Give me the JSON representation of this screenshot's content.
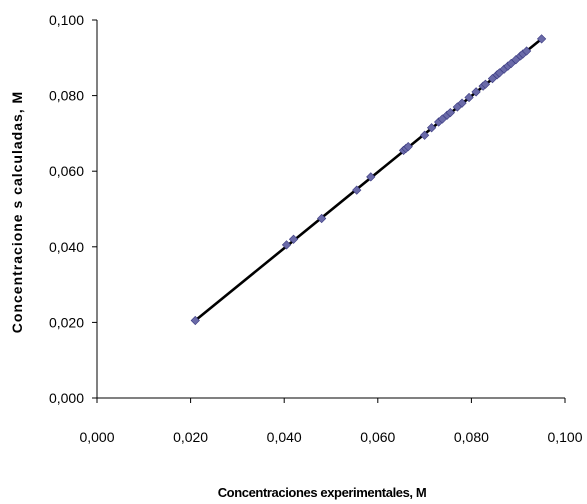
{
  "chart_data": {
    "type": "scatter",
    "title": "",
    "xlabel": "Concentraciones experimentales, M",
    "ylabel": "Concentracione s calculadas, M",
    "xlim": [
      0.0,
      0.1
    ],
    "ylim": [
      0.0,
      0.1
    ],
    "x_ticks": [
      "0,000",
      "0,020",
      "0,040",
      "0,060",
      "0,080",
      "0,100"
    ],
    "y_ticks": [
      "0,000",
      "0,020",
      "0,040",
      "0,060",
      "0,080",
      "0,100"
    ],
    "grid": false,
    "legend": "none",
    "marker": "diamond",
    "marker_color": "#6a6aa8",
    "line_color": "#000000",
    "trendline": {
      "x": [
        0.021,
        0.095
      ],
      "y": [
        0.0205,
        0.095
      ]
    },
    "series": [
      {
        "x": [
          0.021,
          0.0405,
          0.042,
          0.048,
          0.0555,
          0.0585,
          0.0655,
          0.066,
          0.0665,
          0.07,
          0.0715,
          0.073,
          0.0738,
          0.0748,
          0.0755,
          0.077,
          0.078,
          0.0795,
          0.081,
          0.0825,
          0.083,
          0.0845,
          0.0855,
          0.086,
          0.087,
          0.0878,
          0.0885,
          0.0895,
          0.0905,
          0.091,
          0.0918,
          0.095
        ],
        "y": [
          0.0205,
          0.0405,
          0.042,
          0.0475,
          0.055,
          0.0585,
          0.0655,
          0.066,
          0.0665,
          0.0695,
          0.0715,
          0.073,
          0.0738,
          0.0748,
          0.0755,
          0.077,
          0.078,
          0.0795,
          0.081,
          0.0825,
          0.083,
          0.0845,
          0.0855,
          0.086,
          0.087,
          0.0878,
          0.0885,
          0.0895,
          0.0905,
          0.091,
          0.0918,
          0.095
        ]
      }
    ]
  }
}
